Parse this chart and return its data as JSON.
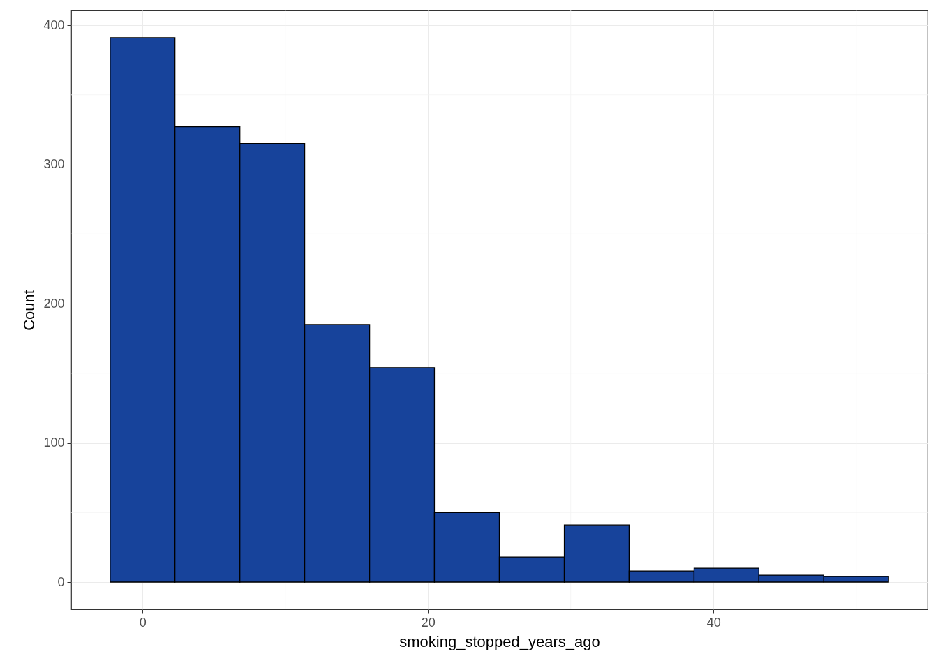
{
  "chart_data": {
    "type": "histogram",
    "xlabel": "smoking_stopped_years_ago",
    "ylabel": "Count",
    "bins": [
      -2.27,
      2.27,
      6.82,
      11.36,
      15.91,
      20.45,
      25,
      29.55,
      34.09,
      38.64,
      43.18,
      47.73,
      52.27
    ],
    "values": [
      391,
      327,
      315,
      185,
      154,
      50,
      18,
      41,
      8,
      10,
      5,
      4
    ],
    "color": "#17439b",
    "xlim": [
      -5,
      55
    ],
    "xticks": [
      0,
      20,
      40
    ],
    "ylim": [
      -19.55,
      410.55
    ],
    "yticks": [
      0,
      100,
      200,
      300,
      400
    ],
    "grid": true
  }
}
